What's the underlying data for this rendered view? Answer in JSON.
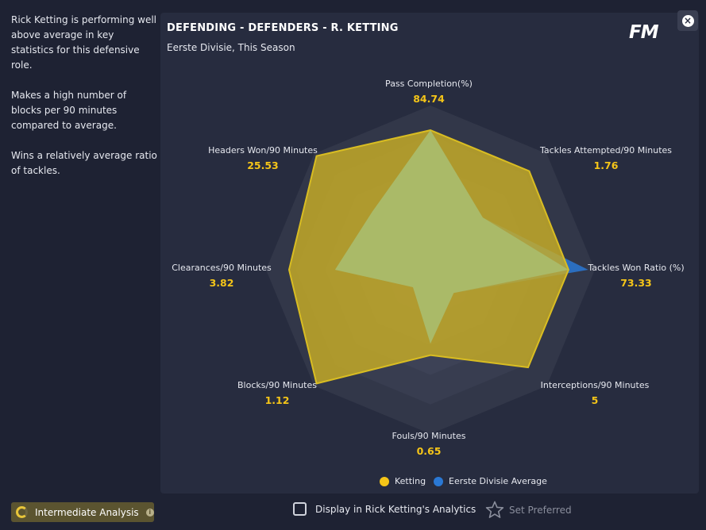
{
  "sidebar": {
    "paragraphs": [
      "Rick Ketting is performing well above average in key statistics for this defensive role.",
      "Makes a high number of blocks per 90 minutes compared to average.",
      "Wins a relatively average ratio of tackles."
    ]
  },
  "panel": {
    "title": "DEFENDING - DEFENDERS - R. KETTING",
    "subtitle": "Eerste Divisie, This Season",
    "logo": "FM"
  },
  "colors": {
    "player": "#f5c518",
    "average": "#2a78d4"
  },
  "chart_data": {
    "type": "radar",
    "axes": [
      {
        "label": "Pass Completion(%)",
        "value": "84.74"
      },
      {
        "label": "Tackles Attempted/90 Minutes",
        "value": "1.76"
      },
      {
        "label": "Tackles Won Ratio (%)",
        "value": "73.33"
      },
      {
        "label": "Interceptions/90 Minutes",
        "value": "5"
      },
      {
        "label": "Fouls/90 Minutes",
        "value": "0.65"
      },
      {
        "label": "Blocks/90 Minutes",
        "value": "1.12"
      },
      {
        "label": "Clearances/90 Minutes",
        "value": "3.82"
      },
      {
        "label": "Headers Won/90 Minutes",
        "value": "25.53"
      }
    ],
    "series": [
      {
        "name": "Ketting",
        "normalized": [
          0.85,
          0.85,
          0.84,
          0.84,
          0.52,
          0.98,
          0.86,
          0.98
        ]
      },
      {
        "name": "Eerste Divisie Average",
        "normalized": [
          0.85,
          0.45,
          0.96,
          0.2,
          0.45,
          0.15,
          0.58,
          0.5
        ]
      }
    ],
    "rings": 5
  },
  "legend": {
    "items": [
      "Ketting",
      "Eerste Divisie Average"
    ]
  },
  "footer": {
    "analysis_label": "Intermediate Analysis",
    "info_icon_glyph": "i",
    "display_label": "Display in Rick Ketting's Analytics",
    "preferred_label": "Set Preferred"
  },
  "close_glyph": "×"
}
